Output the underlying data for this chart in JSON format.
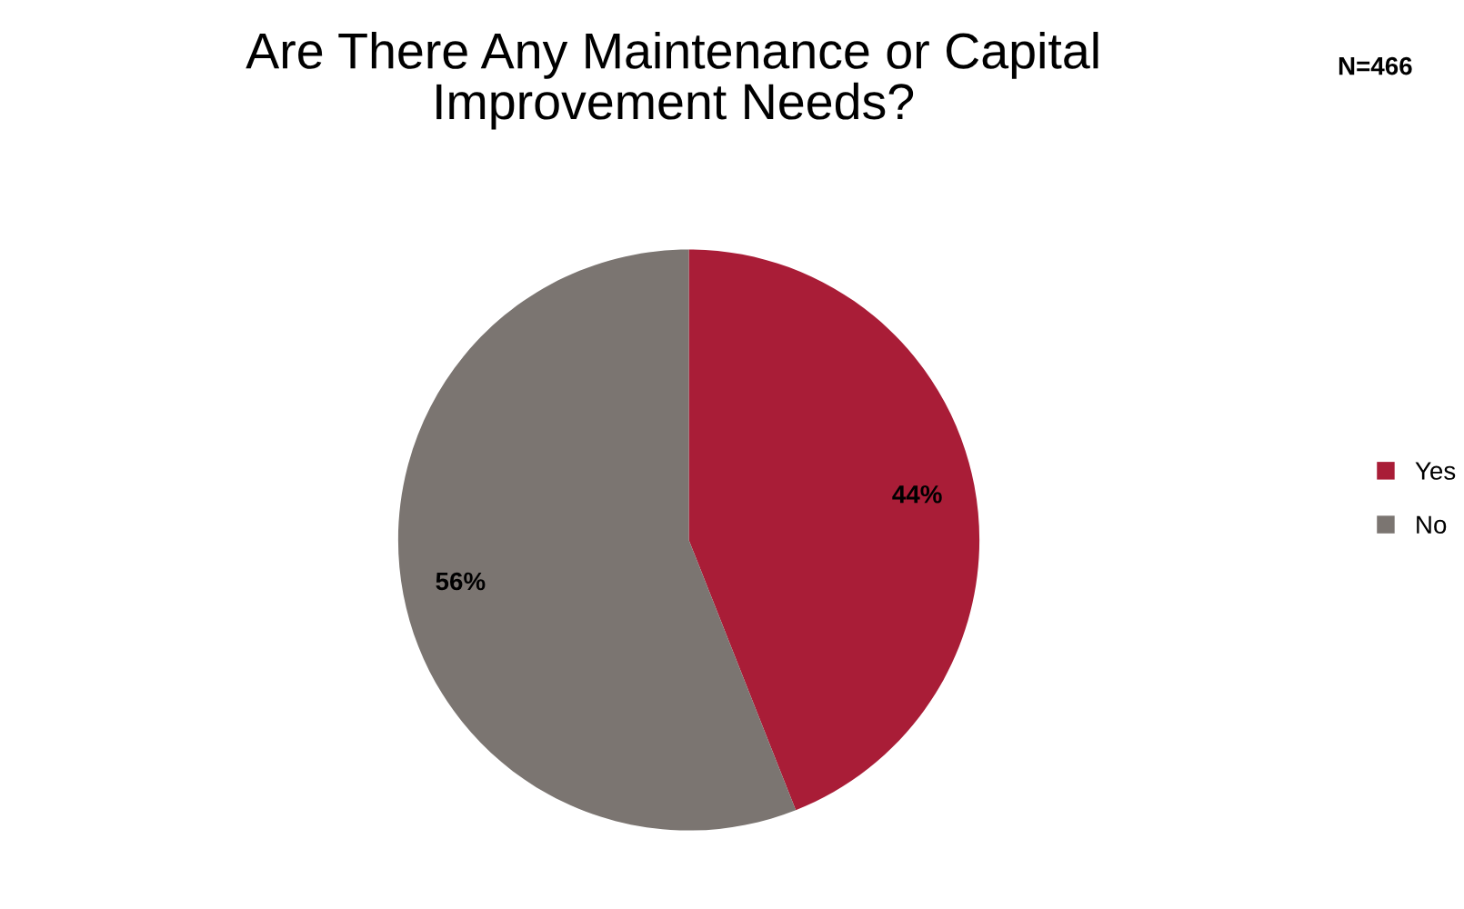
{
  "chart_data": {
    "type": "pie",
    "title": "Are There Any Maintenance or Capital\nImprovement Needs?",
    "annotations": [
      "N=466"
    ],
    "categories": [
      "Yes",
      "No"
    ],
    "values": [
      44,
      56
    ],
    "value_labels": [
      "44%",
      "56%"
    ],
    "colors": [
      "#a91d37",
      "#7b7571"
    ],
    "legend": "right"
  }
}
